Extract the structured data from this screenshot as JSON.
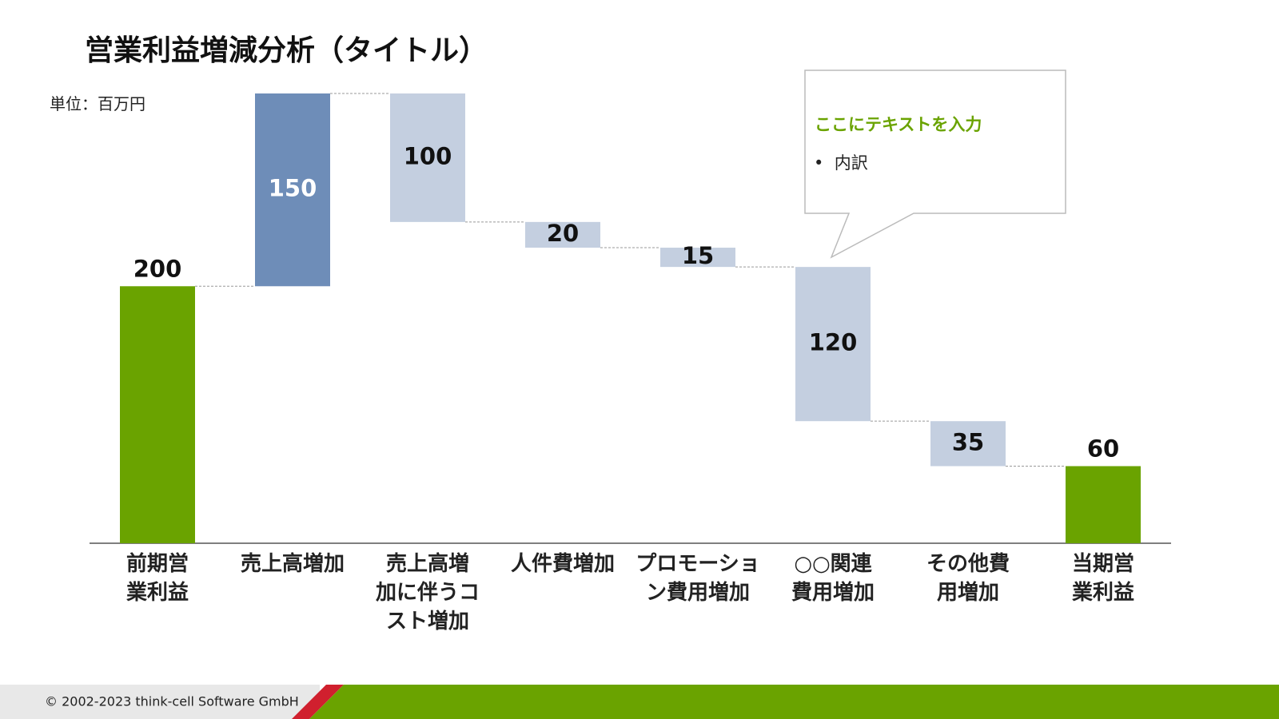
{
  "chart_data": {
    "type": "waterfall",
    "title": "営業利益増減分析（タイトル）",
    "unit_label": "単位：百万円",
    "categories": [
      "前期営\n業利益",
      "売上高増加",
      "売上高増\n加に伴うコ\nスト増加",
      "人件費増加",
      "プロモーショ\nン費用増加",
      "○○関連\n費用増加",
      "その他費\n用増加",
      "当期営\n業利益"
    ],
    "values": [
      200,
      150,
      -100,
      -20,
      -15,
      -120,
      -35,
      60
    ],
    "value_labels": [
      "200",
      "150",
      "100",
      "20",
      "15",
      "120",
      "35",
      "60"
    ],
    "measure": [
      "absolute",
      "relative",
      "relative",
      "relative",
      "relative",
      "relative",
      "relative",
      "total"
    ],
    "colors": [
      "#6aa300",
      "#6e8db8",
      "#c4cfe0",
      "#c4cfe0",
      "#c4cfe0",
      "#c4cfe0",
      "#c4cfe0",
      "#6aa300"
    ],
    "ylim": [
      0,
      350
    ],
    "annotation": {
      "title": "ここにテキストを入力",
      "bullets": [
        "内訳"
      ]
    },
    "footer": "© 2002-2023 think-cell Software GmbH"
  }
}
